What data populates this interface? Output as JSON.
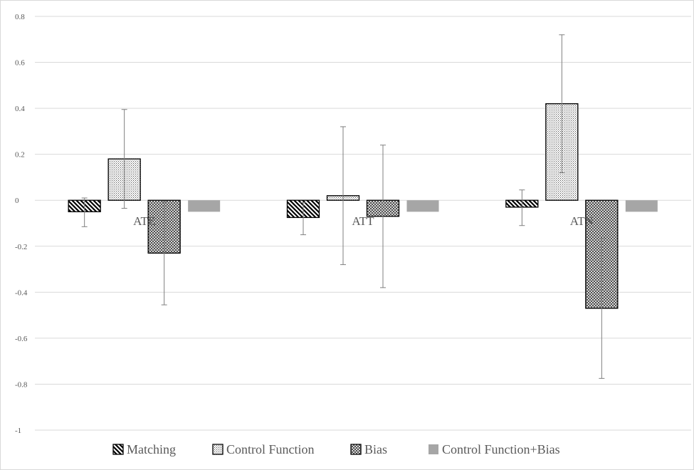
{
  "chart_data": {
    "type": "bar",
    "categories": [
      "ATE",
      "ATT",
      "ATN"
    ],
    "series": [
      {
        "name": "Matching",
        "values": [
          -0.05,
          -0.075,
          -0.03
        ],
        "error_low": [
          -0.115,
          -0.15,
          -0.11
        ],
        "error_high": [
          0.01,
          -0.01,
          0.045
        ],
        "pattern": "diagonal-hatch"
      },
      {
        "name": "Control Function",
        "values": [
          0.18,
          0.02,
          0.42
        ],
        "error_low": [
          -0.035,
          -0.28,
          0.12
        ],
        "error_high": [
          0.395,
          0.32,
          0.72
        ],
        "pattern": "fine-dots"
      },
      {
        "name": "Bias",
        "values": [
          -0.23,
          -0.07,
          -0.47
        ],
        "error_low": [
          -0.455,
          -0.38,
          -0.775
        ],
        "error_high": [
          -0.005,
          0.24,
          -0.165
        ],
        "pattern": "crosshatch"
      },
      {
        "name": "Control Function+Bias",
        "values": [
          -0.05,
          -0.05,
          -0.05
        ],
        "pattern": "solid-gray"
      }
    ],
    "y_ticks": [
      "0.8",
      "0.6",
      "0.4",
      "0.2",
      "0",
      "-0.2",
      "-0.4",
      "-0.6",
      "-0.8",
      "-1"
    ],
    "ylim": [
      -1,
      0.8
    ],
    "grid": true,
    "legend": "bottom",
    "colors": {
      "grid": "#d9d9d9",
      "text": "#595959",
      "bar_edge": "#000000",
      "solid_bar": "#a6a6a6",
      "error_bar": "#7f7f7f"
    }
  }
}
